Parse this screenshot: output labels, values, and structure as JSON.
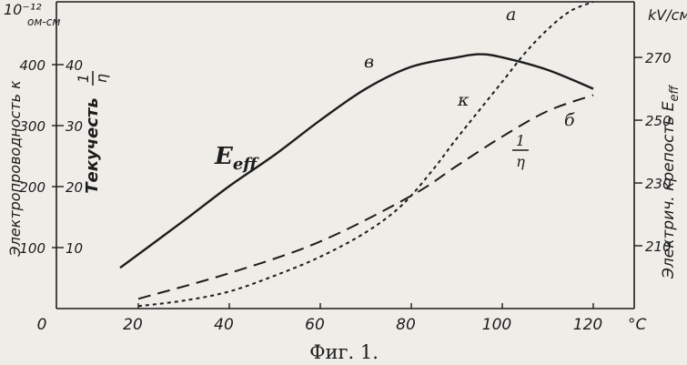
{
  "chart_data": {
    "type": "line",
    "caption": "Фиг. 1.",
    "xlim": [
      0,
      129
    ],
    "xticks": [
      0,
      20,
      40,
      60,
      80,
      100,
      120
    ],
    "x_unit": "°C",
    "ylim": [
      0,
      503
    ],
    "yticks": [
      100,
      200,
      300,
      400
    ],
    "y_label": "Электропроводность κ",
    "y_unit_power": "10⁻¹²",
    "y_unit": "ом-см",
    "y3lim": [
      0,
      50.3
    ],
    "y3ticks": [
      10,
      20,
      30,
      40
    ],
    "y3_label": "Текучесть",
    "y3_label_num": "1",
    "y3_label_den": "η",
    "y2lim": [
      190,
      287.7
    ],
    "y2ticks": [
      210,
      230,
      250,
      270
    ],
    "y2_label": "Электрич. крепость E",
    "y2_label_sub": "eff",
    "y2_unit": "kV/см",
    "series": [
      {
        "name": "E",
        "name_sub": "eff",
        "letter": "в",
        "axis": "y2",
        "color": "#1c1c1c",
        "dash": "solid",
        "x": [
          16,
          30,
          40,
          50,
          60,
          70,
          80,
          90,
          95,
          100,
          110,
          120
        ],
        "values": [
          203,
          218,
          229,
          239,
          250,
          260,
          267,
          270,
          271,
          270,
          266,
          260
        ]
      },
      {
        "name": "κ",
        "letter": "а",
        "axis": "y",
        "color": "#1c1c1c",
        "dash": "short",
        "x": [
          20,
          30,
          40,
          50,
          60,
          70,
          78,
          85,
          90,
          100,
          105,
          110,
          115,
          120
        ],
        "values": [
          4,
          13,
          28,
          54,
          85,
          125,
          170,
          230,
          279,
          372,
          419,
          458,
          488,
          503
        ]
      },
      {
        "name": "1",
        "name_den": "η",
        "letter": "б",
        "axis": "y3",
        "color": "#1c1c1c",
        "dash": "long",
        "x": [
          20,
          40,
          60,
          80,
          90,
          100,
          110,
          120
        ],
        "values": [
          1.6,
          5.8,
          11,
          18.5,
          23.4,
          28.2,
          32.4,
          35
        ]
      }
    ]
  }
}
